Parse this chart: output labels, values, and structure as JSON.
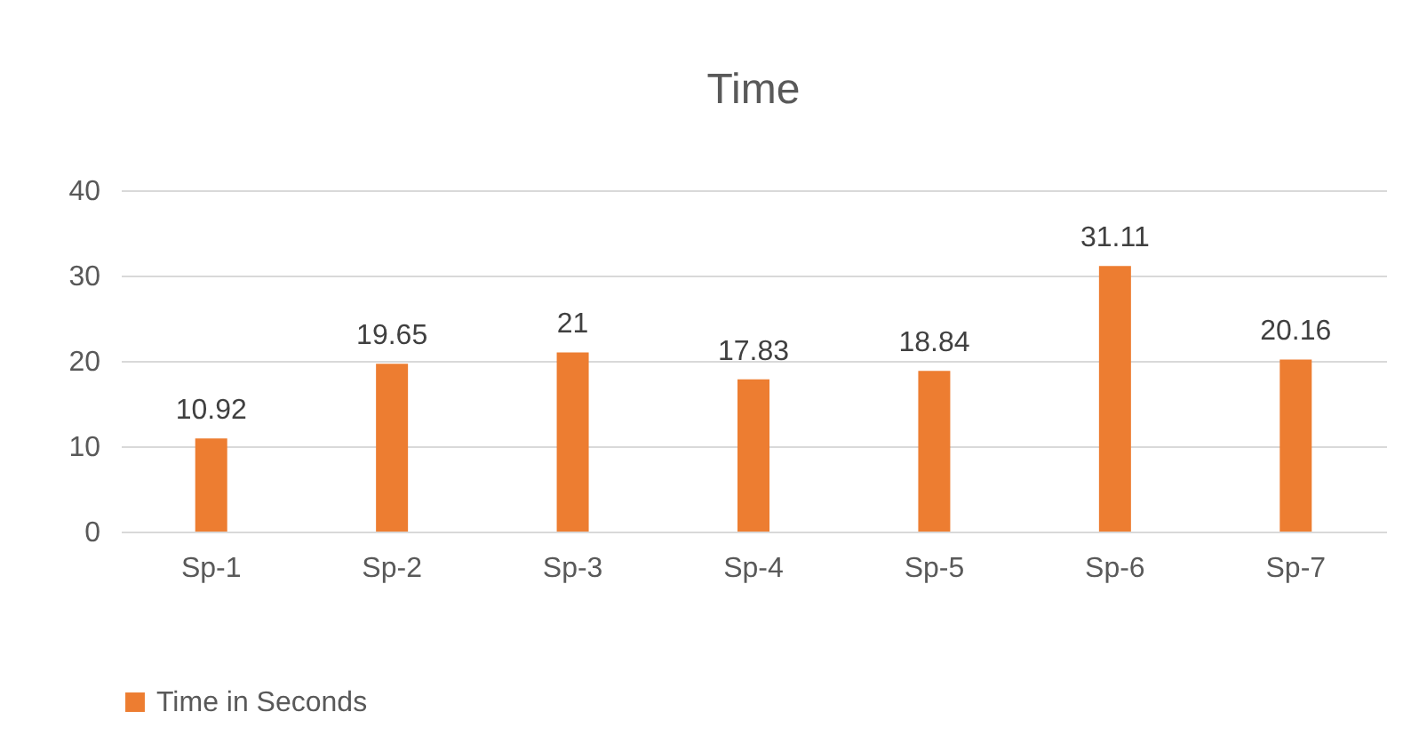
{
  "chart_data": {
    "type": "bar",
    "title": "Time",
    "categories": [
      "Sp-1",
      "Sp-2",
      "Sp-3",
      "Sp-4",
      "Sp-5",
      "Sp-6",
      "Sp-7"
    ],
    "series": [
      {
        "name": "Time in Seconds",
        "color": "#ed7d31",
        "values": [
          10.92,
          19.65,
          21,
          17.83,
          18.84,
          31.11,
          20.16
        ]
      }
    ],
    "ylim": [
      0,
      40
    ],
    "yticks": [
      0,
      10,
      20,
      30,
      40
    ],
    "grid": "y",
    "legend": "bottom",
    "data_labels": true
  }
}
